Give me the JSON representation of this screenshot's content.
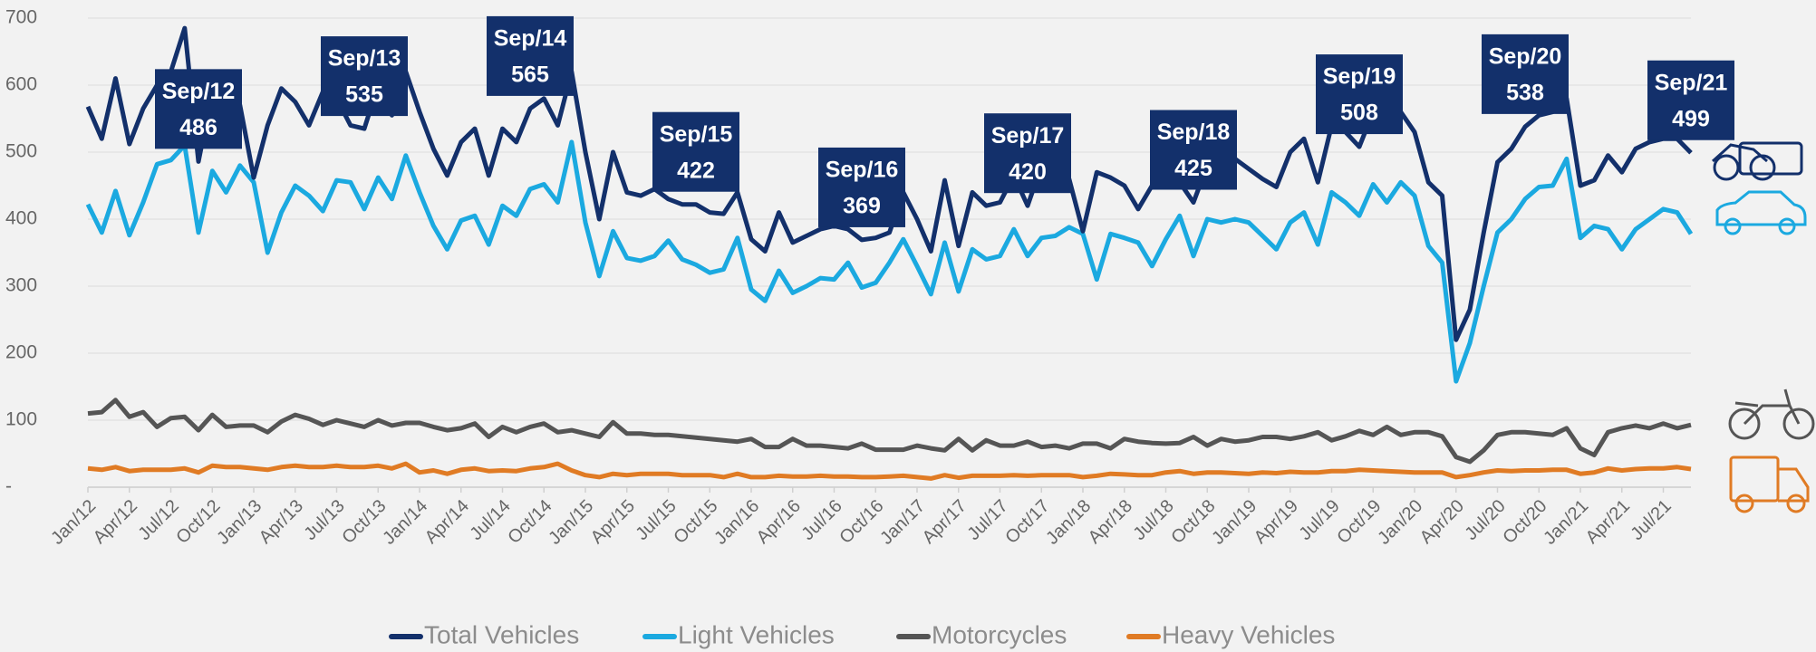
{
  "chart_data": {
    "type": "line",
    "categories": [
      "Jan/12",
      null,
      null,
      "Apr/12",
      null,
      null,
      "Jul/12",
      null,
      null,
      "Oct/12",
      null,
      null,
      "Jan/13",
      null,
      null,
      "Apr/13",
      null,
      null,
      "Jul/13",
      null,
      null,
      "Oct/13",
      null,
      null,
      "Jan/14",
      null,
      null,
      "Apr/14",
      null,
      null,
      "Jul/14",
      null,
      null,
      "Oct/14",
      null,
      null,
      "Jan/15",
      null,
      null,
      "Apr/15",
      null,
      null,
      "Jul/15",
      null,
      null,
      "Oct/15",
      null,
      null,
      "Jan/16",
      null,
      null,
      "Apr/16",
      null,
      null,
      "Jul/16",
      null,
      null,
      "Oct/16",
      null,
      null,
      "Jan/17",
      null,
      null,
      "Apr/17",
      null,
      null,
      "Jul/17",
      null,
      null,
      "Oct/17",
      null,
      null,
      "Jan/18",
      null,
      null,
      "Apr/18",
      null,
      null,
      "Jul/18",
      null,
      null,
      "Oct/18",
      null,
      null,
      "Jan/19",
      null,
      null,
      "Apr/19",
      null,
      null,
      "Jul/19",
      null,
      null,
      "Oct/19",
      null,
      null,
      "Jan/20",
      null,
      null,
      "Apr/20",
      null,
      null,
      "Jul/20",
      null,
      null,
      "Oct/20",
      null,
      null,
      "Jan/21",
      null,
      null,
      "Apr/21",
      null,
      null,
      "Jul/21",
      null,
      null
    ],
    "series": [
      {
        "name": "Total Vehicles",
        "color": "#13306b",
        "values": [
          568,
          520,
          610,
          512,
          565,
          600,
          620,
          685,
          486,
          590,
          600,
          570,
          462,
          540,
          595,
          575,
          540,
          590,
          580,
          540,
          535,
          600,
          555,
          620,
          560,
          505,
          465,
          515,
          535,
          465,
          535,
          515,
          565,
          580,
          540,
          620,
          500,
          400,
          500,
          440,
          435,
          445,
          430,
          422,
          422,
          410,
          408,
          440,
          370,
          352,
          410,
          365,
          375,
          385,
          390,
          385,
          369,
          372,
          380,
          440,
          400,
          352,
          458,
          360,
          440,
          420,
          425,
          465,
          420,
          480,
          470,
          460,
          382,
          470,
          462,
          450,
          415,
          450,
          460,
          455,
          425,
          480,
          490,
          490,
          475,
          460,
          448,
          500,
          520,
          455,
          540,
          530,
          508,
          560,
          585,
          560,
          530,
          455,
          435,
          220,
          265,
          380,
          485,
          505,
          538,
          555,
          560,
          580,
          450,
          458,
          495,
          470,
          505,
          515,
          520,
          520,
          499
        ]
      },
      {
        "name": "Light Vehicles",
        "color": "#1ba9e0",
        "values": [
          422,
          380,
          442,
          376,
          425,
          482,
          488,
          510,
          380,
          472,
          440,
          480,
          455,
          350,
          410,
          450,
          435,
          412,
          458,
          455,
          415,
          462,
          430,
          495,
          440,
          390,
          355,
          398,
          405,
          362,
          420,
          405,
          445,
          452,
          425,
          515,
          395,
          315,
          382,
          342,
          338,
          345,
          368,
          340,
          332,
          320,
          325,
          372,
          295,
          278,
          323,
          290,
          300,
          312,
          310,
          335,
          298,
          305,
          335,
          370,
          330,
          288,
          365,
          292,
          355,
          340,
          345,
          385,
          345,
          372,
          375,
          388,
          378,
          310,
          378,
          372,
          365,
          330,
          370,
          405,
          345,
          400,
          395,
          400,
          395,
          375,
          355,
          395,
          410,
          362,
          440,
          425,
          405,
          452,
          425,
          455,
          435,
          360,
          335,
          158,
          215,
          300,
          380,
          400,
          430,
          448,
          450,
          490,
          372,
          390,
          385,
          355,
          385,
          400,
          415,
          410,
          378
        ]
      },
      {
        "name": "Motorcycles",
        "color": "#555555",
        "values": [
          110,
          112,
          130,
          105,
          112,
          90,
          103,
          105,
          85,
          108,
          90,
          92,
          92,
          82,
          98,
          108,
          102,
          93,
          100,
          95,
          90,
          100,
          92,
          96,
          96,
          90,
          85,
          88,
          95,
          75,
          90,
          82,
          90,
          95,
          82,
          85,
          80,
          75,
          97,
          80,
          80,
          78,
          78,
          76,
          74,
          72,
          70,
          68,
          72,
          60,
          60,
          72,
          62,
          62,
          60,
          58,
          65,
          56,
          56,
          56,
          62,
          58,
          55,
          72,
          55,
          70,
          62,
          62,
          68,
          60,
          62,
          58,
          65,
          65,
          58,
          72,
          68,
          66,
          65,
          66,
          75,
          62,
          72,
          68,
          70,
          75,
          75,
          72,
          76,
          82,
          70,
          76,
          84,
          78,
          90,
          78,
          82,
          82,
          76,
          45,
          38,
          55,
          78,
          82,
          82,
          80,
          78,
          88,
          58,
          48,
          82,
          88,
          92,
          88,
          95,
          88,
          93
        ]
      },
      {
        "name": "Heavy Vehicles",
        "color": "#e07b24",
        "values": [
          28,
          26,
          30,
          24,
          26,
          26,
          26,
          28,
          22,
          32,
          30,
          30,
          28,
          26,
          30,
          32,
          30,
          30,
          32,
          30,
          30,
          32,
          28,
          35,
          22,
          25,
          20,
          26,
          28,
          24,
          25,
          24,
          28,
          30,
          35,
          25,
          18,
          15,
          20,
          18,
          20,
          20,
          20,
          18,
          18,
          18,
          15,
          20,
          15,
          15,
          17,
          16,
          16,
          17,
          16,
          16,
          15,
          15,
          16,
          17,
          15,
          13,
          18,
          14,
          17,
          17,
          17,
          18,
          17,
          18,
          18,
          18,
          15,
          17,
          20,
          19,
          18,
          18,
          22,
          24,
          20,
          22,
          22,
          21,
          20,
          22,
          21,
          23,
          22,
          22,
          24,
          24,
          26,
          25,
          24,
          23,
          22,
          22,
          22,
          15,
          18,
          22,
          25,
          24,
          25,
          25,
          26,
          26,
          20,
          22,
          28,
          25,
          27,
          28,
          28,
          30,
          27
        ]
      }
    ],
    "ylim": [
      0,
      700
    ],
    "yticks": [
      {
        "value": 0,
        "label": "-"
      },
      100,
      200,
      300,
      400,
      500,
      600,
      700
    ],
    "grid": true,
    "legend": "bottom",
    "annotations": [
      {
        "label": "Sep/12",
        "value": 486
      },
      {
        "label": "Sep/13",
        "value": 535
      },
      {
        "label": "Sep/14",
        "value": 565
      },
      {
        "label": "Sep/15",
        "value": 422
      },
      {
        "label": "Sep/16",
        "value": 369
      },
      {
        "label": "Sep/17",
        "value": 420
      },
      {
        "label": "Sep/18",
        "value": 425
      },
      {
        "label": "Sep/19",
        "value": 508
      },
      {
        "label": "Sep/20",
        "value": 538
      },
      {
        "label": "Sep/21",
        "value": 499
      }
    ]
  }
}
